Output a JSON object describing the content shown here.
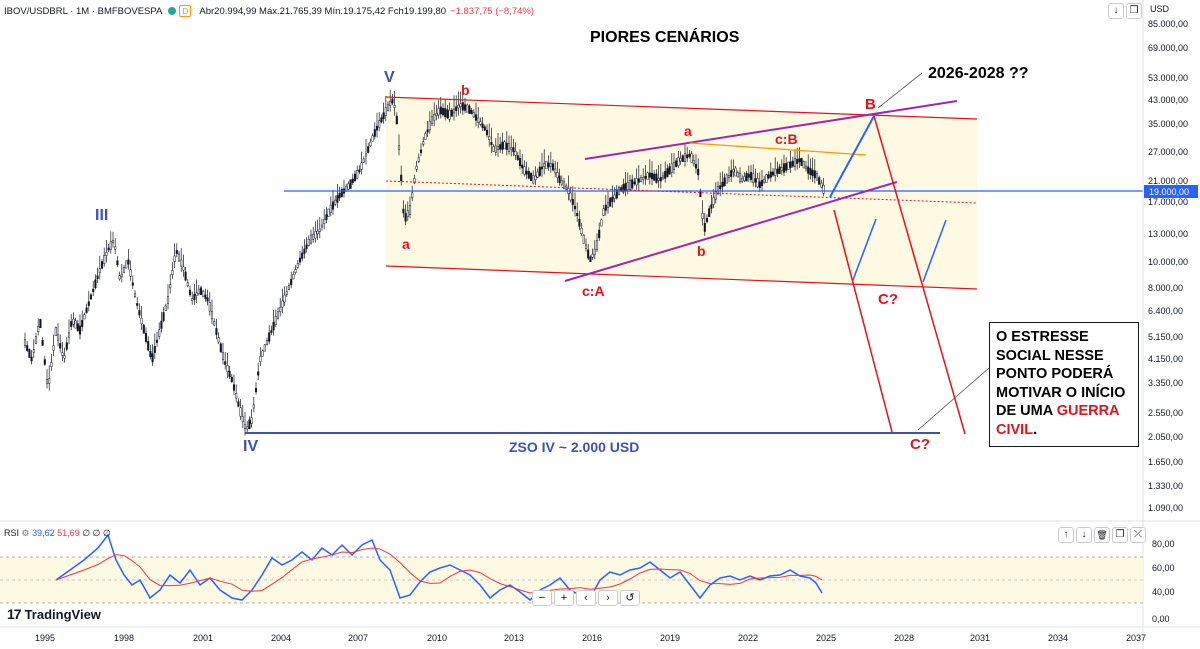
{
  "header": {
    "symbol": "IBOV/USDBRL · 1M · BMFBOVESPA",
    "badge": "D",
    "ohlc": "Abr20.994,99  Máx.21.765,39  Mín.19.175,42  Fch19.199,80",
    "change": "−1.837,75 (−8,74%)"
  },
  "price_axis": {
    "unit": "USD",
    "ticks": [
      "85.000,00",
      "69.000,00",
      "53.000,00",
      "43.000,00",
      "35.000,00",
      "27.000,00",
      "21.000,00",
      "17.000,00",
      "13.000,00",
      "10.000,00",
      "8.000,00",
      "6.400,00",
      "5.150,00",
      "4.150,00",
      "3.350,00",
      "2.550,00",
      "2.050,00",
      "1.650,00",
      "1.330,00",
      "1.090,00"
    ],
    "current_price": "19.000,00"
  },
  "time_axis": {
    "ticks": [
      "1995",
      "1998",
      "2001",
      "2004",
      "2007",
      "2010",
      "2013",
      "2016",
      "2019",
      "2022",
      "2025",
      "2028",
      "2031",
      "2034",
      "2037"
    ]
  },
  "rsi": {
    "label": "RSI",
    "value1": "39,62",
    "value2": "51,69",
    "extra": "∅ ∅ ∅",
    "ticks": [
      "80,00",
      "60,00",
      "40,00",
      "0,00"
    ]
  },
  "annotations": {
    "title": "PIORES CENÁRIOS",
    "target_years": "2026-2028 ??",
    "wave_V": "V",
    "wave_III": "III",
    "wave_IV": "IV",
    "wave_b1": "b",
    "wave_a1": "a",
    "wave_a2": "a",
    "wave_cB": "c:B",
    "wave_b2": "b",
    "wave_cA": "c:A",
    "wave_B": "B",
    "wave_C1": "C?",
    "wave_C2": "C?",
    "zso": "ZSO IV ~ 2.000 USD",
    "box_line1": "O ESTRESSE SOCIAL NESSE PONTO PODERÁ MOTIVAR O INÍCIO DE UMA ",
    "box_line2": "GUERRA CIVIL",
    "box_line3": "."
  },
  "nav": [
    "−",
    "+",
    "‹",
    "›",
    "↺"
  ],
  "logo": {
    "mark": "17",
    "text": "TradingView"
  },
  "toolbar": {
    "down": "↓",
    "restore": "❐"
  },
  "rsi_toolbar": [
    "↑",
    "↓",
    "🗑",
    "❐",
    "⤫"
  ],
  "colors": {
    "candle": "#131722",
    "channel_red": "#e1141e",
    "purple": "#9c27b0",
    "blue_line": "#2962ff",
    "hline": "#2962ff",
    "orange": "#ff9800",
    "zone_fill": "#fdf9e3",
    "rsi_line": "#2962ff",
    "rsi_ma": "#f23645"
  }
}
